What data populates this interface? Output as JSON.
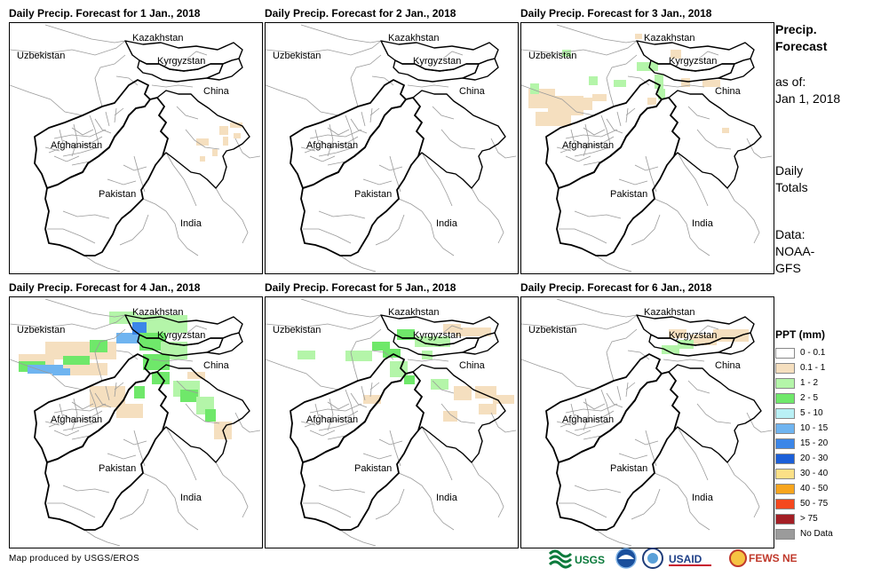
{
  "panels": [
    {
      "title": "Daily Precip. Forecast for 1 Jan., 2018",
      "day": 1
    },
    {
      "title": "Daily Precip. Forecast for 2 Jan., 2018",
      "day": 2
    },
    {
      "title": "Daily Precip. Forecast for 3 Jan., 2018",
      "day": 3
    },
    {
      "title": "Daily Precip. Forecast for 4 Jan., 2018",
      "day": 4
    },
    {
      "title": "Daily Precip. Forecast for 5 Jan., 2018",
      "day": 5
    },
    {
      "title": "Daily Precip. Forecast for 6 Jan., 2018",
      "day": 6
    }
  ],
  "map_labels": {
    "kazakhstan": "Kazakhstan",
    "uzbekistan": "Uzbekistan",
    "kyrgyzstan": "Kyrgyzstan",
    "china": "China",
    "afghanistan": "Afghanistan",
    "pakistan": "Pakistan",
    "india": "India"
  },
  "sidebar": {
    "title_line1": "Precip.",
    "title_line2": "Forecast",
    "asof_line1": "as of:",
    "asof_line2": "Jan 1, 2018",
    "totals_line1": "Daily",
    "totals_line2": "Totals",
    "data_line1": "Data:",
    "data_line2": "NOAA-",
    "data_line3": "GFS"
  },
  "legend": {
    "title": "PPT (mm)",
    "items": [
      {
        "label": "0 - 0.1",
        "color": "#ffffff"
      },
      {
        "label": "0.1 - 1",
        "color": "#f5dfbf"
      },
      {
        "label": "1 - 2",
        "color": "#b4f5a9"
      },
      {
        "label": "2 - 5",
        "color": "#6fe86a"
      },
      {
        "label": "5 - 10",
        "color": "#b9f0f5"
      },
      {
        "label": "10 - 15",
        "color": "#6fb4f0"
      },
      {
        "label": "15 - 20",
        "color": "#3b86e8"
      },
      {
        "label": "20 - 30",
        "color": "#1b5fd8"
      },
      {
        "label": "30 - 40",
        "color": "#fbe087"
      },
      {
        "label": "40 - 50",
        "color": "#f8a51d"
      },
      {
        "label": "50 - 75",
        "color": "#f5481e"
      },
      {
        "label": "> 75",
        "color": "#a31e24"
      },
      {
        "label": "No Data",
        "color": "#9b9b9b"
      }
    ]
  },
  "footer": {
    "credit": "Map produced by USGS/EROS"
  },
  "logos": {
    "usgs": "USGS",
    "usaid": "USAID",
    "fewsnet": "FEWS NET"
  }
}
